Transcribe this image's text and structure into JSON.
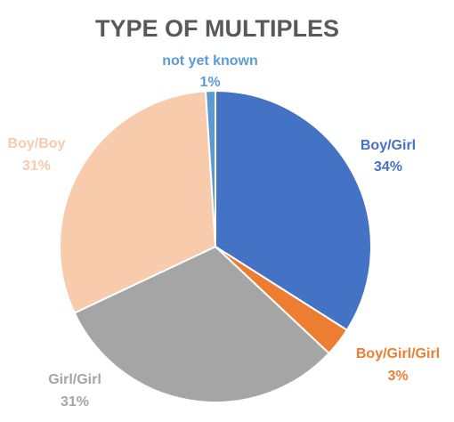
{
  "chart_data": {
    "type": "pie",
    "title": "TYPE OF MULTIPLES",
    "slices": [
      {
        "label": "Boy/Girl",
        "value": 34,
        "pct_label": "34%",
        "color": "#4472C4"
      },
      {
        "label": "Boy/Girl/Girl",
        "value": 3,
        "pct_label": "3%",
        "color": "#ED7D31"
      },
      {
        "label": "Girl/Girl",
        "value": 31,
        "pct_label": "31%",
        "color": "#A5A5A5"
      },
      {
        "label": "Boy/Boy",
        "value": 31,
        "pct_label": "31%",
        "color": "#F8CBAD"
      },
      {
        "label": "not yet known",
        "value": 1,
        "pct_label": "1%",
        "color": "#5B9BD5"
      }
    ],
    "start_angle_deg": 0,
    "direction": "clockwise",
    "legend": "none",
    "data_labels": "outside"
  }
}
